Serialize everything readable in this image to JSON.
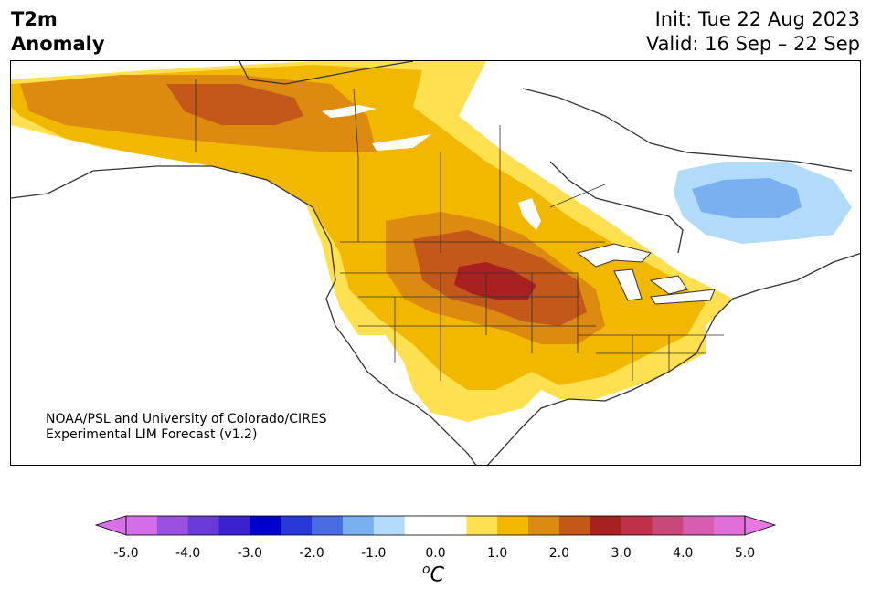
{
  "header": {
    "variable_line1": "T2m",
    "variable_line2": "Anomaly",
    "init": "Init: Tue 22 Aug 2023",
    "valid": "Valid: 16 Sep – 22 Sep"
  },
  "credit": {
    "line1": "NOAA/PSL and University of Colorado/CIRES",
    "line2": "Experimental LIM Forecast (v1.2)"
  },
  "colorbar": {
    "unit_base": "C",
    "unit_sup": "o",
    "ticks": [
      "-5.0",
      "-4.0",
      "-3.0",
      "-2.0",
      "-1.0",
      "0.0",
      "1.0",
      "2.0",
      "3.0",
      "4.0",
      "5.0"
    ],
    "colors": [
      "#d36ee8",
      "#9a50e0",
      "#6a3ad8",
      "#3a22d0",
      "#0000cc",
      "#2838d8",
      "#4a6ae4",
      "#78b0f0",
      "#b0dcfa",
      "#ffffff",
      "#ffffff",
      "#ffe050",
      "#f2b800",
      "#dc8a10",
      "#c45818",
      "#a82020",
      "#c03048",
      "#c84878",
      "#d85cb0",
      "#e070d8"
    ],
    "over_color": "#e878e0",
    "under_color": "#d870e8"
  },
  "palette": {
    "anom_0_5": "#ffe050",
    "anom_1_0": "#f2b800",
    "anom_1_5": "#dc8a10",
    "anom_2_0": "#c45818",
    "anom_2_5": "#a82020",
    "neg_0_5": "#b0dcfa",
    "neg_1_0": "#78b0f0"
  }
}
